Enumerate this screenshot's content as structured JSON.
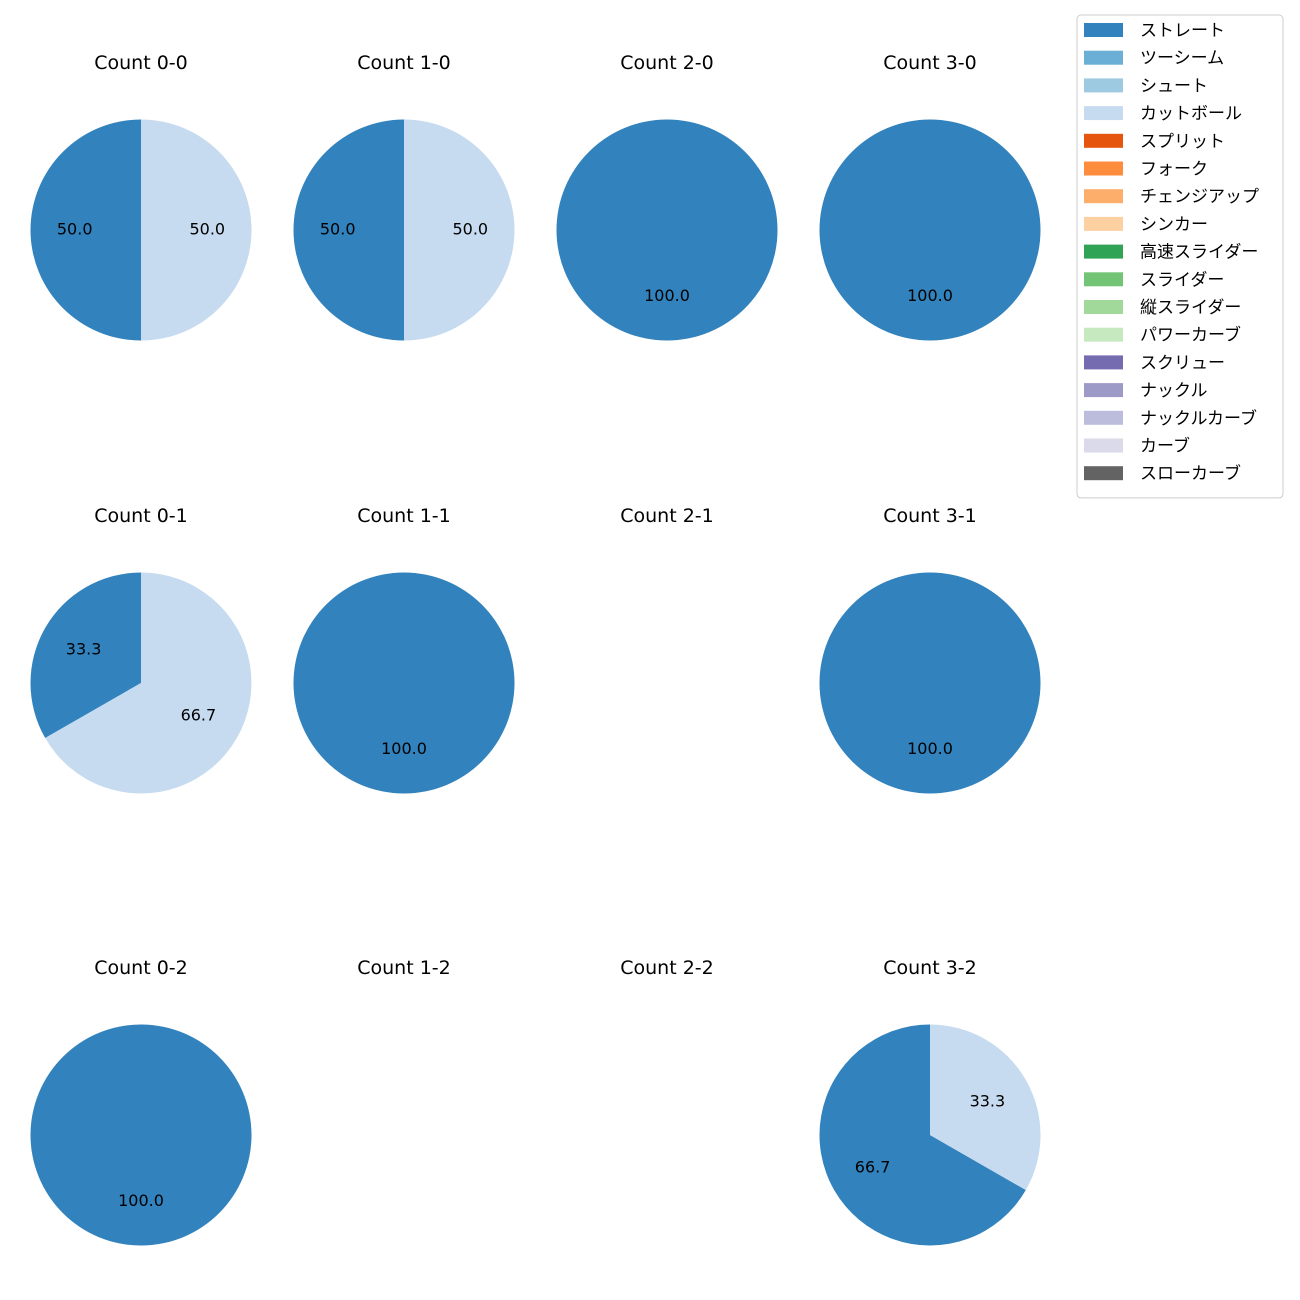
{
  "chart_data": {
    "type": "pie",
    "categories": [
      "ストレート",
      "ツーシーム",
      "シュート",
      "カットボール",
      "スプリット",
      "フォーク",
      "チェンジアップ",
      "シンカー",
      "高速スライダー",
      "スライダー",
      "縦スライダー",
      "パワーカーブ",
      "スクリュー",
      "ナックル",
      "ナックルカーブ",
      "カーブ",
      "スローカーブ"
    ],
    "colors": [
      "#3182bd",
      "#6baed6",
      "#9ecae1",
      "#c6dbef",
      "#e6550d",
      "#fd8d3c",
      "#fdae6b",
      "#fdd0a2",
      "#31a354",
      "#74c476",
      "#a1d99b",
      "#c7e9c0",
      "#756bb1",
      "#9e9ac8",
      "#bcbddc",
      "#dadaeb",
      "#636363"
    ],
    "legend_position": "top-right",
    "pies": [
      {
        "title": "Count 0-0",
        "values": {
          "ストレート": 50.0,
          "カットボール": 50.0
        }
      },
      {
        "title": "Count 1-0",
        "values": {
          "ストレート": 50.0,
          "カットボール": 50.0
        }
      },
      {
        "title": "Count 2-0",
        "values": {
          "ストレート": 100.0
        }
      },
      {
        "title": "Count 3-0",
        "values": {
          "ストレート": 100.0
        }
      },
      {
        "title": "Count 0-1",
        "values": {
          "ストレート": 33.3,
          "カットボール": 66.7
        }
      },
      {
        "title": "Count 1-1",
        "values": {
          "ストレート": 100.0
        }
      },
      {
        "title": "Count 2-1",
        "values": {}
      },
      {
        "title": "Count 3-1",
        "values": {
          "ストレート": 100.0
        }
      },
      {
        "title": "Count 0-2",
        "values": {
          "ストレート": 100.0
        }
      },
      {
        "title": "Count 1-2",
        "values": {}
      },
      {
        "title": "Count 2-2",
        "values": {}
      },
      {
        "title": "Count 3-2",
        "values": {
          "ストレート": 66.7,
          "カットボール": 33.3
        }
      }
    ]
  }
}
